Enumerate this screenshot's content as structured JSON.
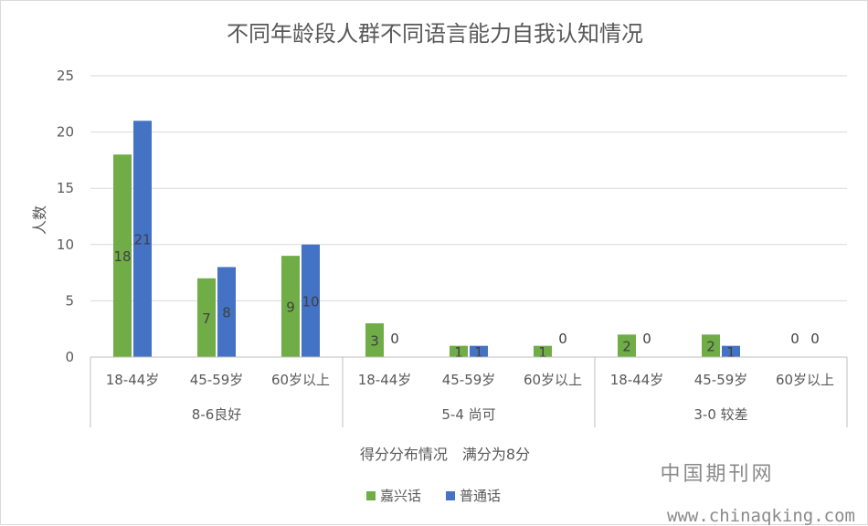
{
  "chart_data": {
    "type": "bar",
    "title": "不同年龄段人群不同语言能力自我认知情况",
    "xlabel": "得分分布情况　满分为8分",
    "ylabel": "人数",
    "ylim": [
      0,
      25
    ],
    "yticks": [
      0,
      5,
      10,
      15,
      20,
      25
    ],
    "grid": true,
    "legend_position": "bottom",
    "groups": [
      {
        "label": "8-6良好",
        "categories": [
          "18-44岁",
          "45-59岁",
          "60岁以上"
        ]
      },
      {
        "label": "5-4 尚可",
        "categories": [
          "18-44岁",
          "45-59岁",
          "60岁以上"
        ]
      },
      {
        "label": "3-0 较差",
        "categories": [
          "18-44岁",
          "45-59岁",
          "60岁以上"
        ]
      }
    ],
    "series": [
      {
        "name": "嘉兴话",
        "color": "#70ad47",
        "values": [
          18,
          7,
          9,
          3,
          1,
          1,
          2,
          2,
          0
        ]
      },
      {
        "name": "普通话",
        "color": "#4472c4",
        "values": [
          21,
          8,
          10,
          0,
          1,
          0,
          0,
          1,
          0
        ]
      }
    ]
  },
  "watermark": {
    "line1": "中国期刊网",
    "line2": "www.chinaqking.com"
  }
}
